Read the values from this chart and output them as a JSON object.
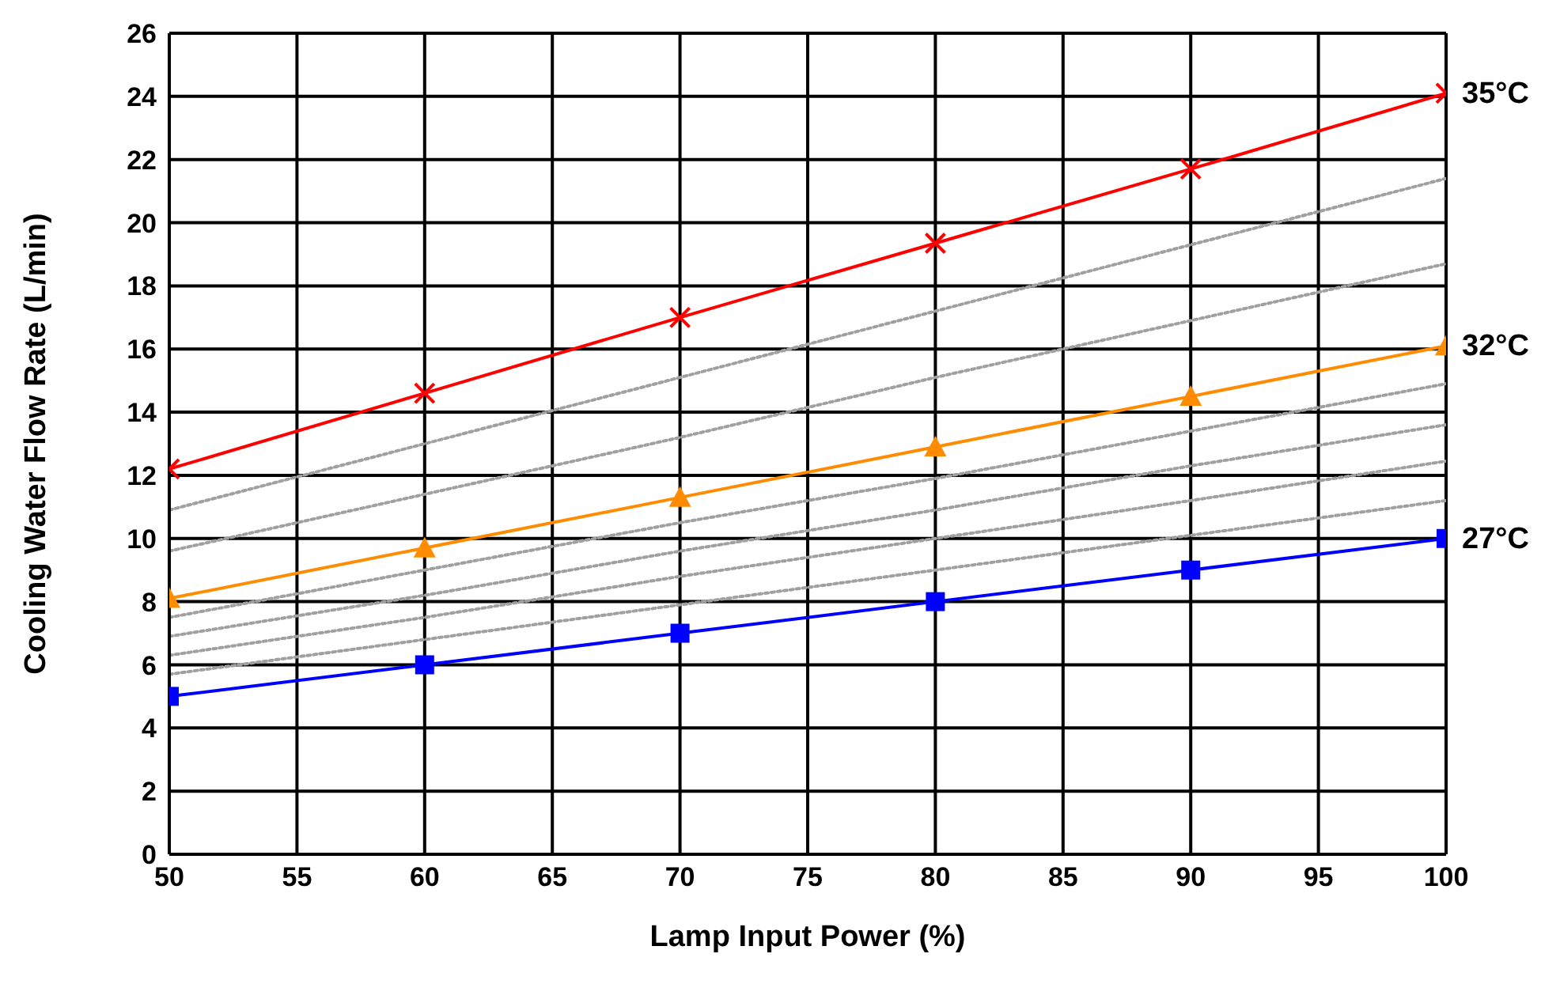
{
  "chart_data": {
    "type": "line",
    "xlabel": "Lamp Input Power (%)",
    "ylabel": "Cooling Water Flow Rate (L/min)",
    "x": [
      50,
      60,
      70,
      80,
      90,
      100
    ],
    "series": [
      {
        "name": "35°C",
        "color": "#ff0000",
        "marker": "cross",
        "values": [
          12.2,
          14.6,
          17.0,
          19.35,
          21.7,
          24.1
        ]
      },
      {
        "name": "32°C",
        "color": "#ff8c00",
        "marker": "triangle",
        "values": [
          8.1,
          9.7,
          11.3,
          12.9,
          14.5,
          16.1
        ]
      },
      {
        "name": "27°C",
        "color": "#0000ff",
        "marker": "square",
        "values": [
          5,
          6,
          7,
          8,
          9,
          10
        ]
      },
      {
        "color": "#a0a0a0",
        "marker": "none",
        "line_style": "dotted",
        "values": [
          10.9,
          13.0,
          15.1,
          17.2,
          19.3,
          21.4
        ]
      },
      {
        "color": "#a0a0a0",
        "marker": "none",
        "line_style": "dotted",
        "values": [
          9.6,
          11.4,
          13.2,
          15.1,
          16.9,
          18.7
        ]
      },
      {
        "color": "#a0a0a0",
        "marker": "none",
        "line_style": "dotted",
        "values": [
          7.5,
          9.0,
          10.5,
          11.9,
          13.4,
          14.9
        ]
      },
      {
        "color": "#a0a0a0",
        "marker": "none",
        "line_style": "dotted",
        "values": [
          6.9,
          8.2,
          9.6,
          10.9,
          12.3,
          13.6
        ]
      },
      {
        "color": "#a0a0a0",
        "marker": "none",
        "line_style": "dotted",
        "values": [
          6.3,
          7.5,
          8.8,
          10.0,
          11.2,
          12.45
        ]
      },
      {
        "color": "#a0a0a0",
        "marker": "none",
        "line_style": "dotted",
        "values": [
          5.7,
          6.8,
          7.9,
          9.0,
          10.1,
          11.2
        ]
      }
    ],
    "xlim": [
      50,
      100
    ],
    "xticks": [
      50,
      55,
      60,
      65,
      70,
      75,
      80,
      85,
      90,
      95,
      100
    ],
    "ylim": [
      0,
      26
    ],
    "yticks": [
      0,
      2,
      4,
      6,
      8,
      10,
      12,
      14,
      16,
      18,
      20,
      22,
      24,
      26
    ],
    "grid": true,
    "legend": false
  }
}
